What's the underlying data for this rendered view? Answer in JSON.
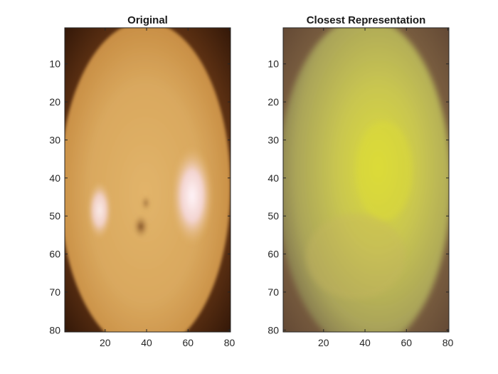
{
  "chart_data": [
    {
      "type": "image",
      "title": "Original",
      "xlabel": "",
      "ylabel": "",
      "xlim": [
        0.5,
        80.5
      ],
      "ylim": [
        0.5,
        80.5
      ],
      "y_reversed": true,
      "x_ticks": [
        20,
        40,
        60,
        80
      ],
      "y_ticks": [
        10,
        20,
        30,
        40,
        50,
        60,
        70,
        80
      ],
      "grid": false,
      "content": "photo of a yellow-orange mango with two white highlights and a small dark spot",
      "colors": {
        "body": "#d9a85e",
        "highlight": "#fbeef2",
        "shadow": "#3a1d0c",
        "corner": "#8a5520"
      }
    },
    {
      "type": "image",
      "title": "Closest Representation",
      "xlabel": "",
      "ylabel": "",
      "xlim": [
        0.5,
        80.5
      ],
      "ylim": [
        0.5,
        80.5
      ],
      "y_reversed": true,
      "x_ticks": [
        20,
        40,
        60,
        80
      ],
      "y_ticks": [
        10,
        20,
        30,
        40,
        50,
        60,
        70,
        80
      ],
      "grid": false,
      "content": "blurry yellow-green reconstruction of the mango",
      "colors": {
        "body": "#c2c057",
        "center": "#d8d83a",
        "edge": "#7a6a40",
        "corner": "#8a6a48"
      }
    }
  ]
}
